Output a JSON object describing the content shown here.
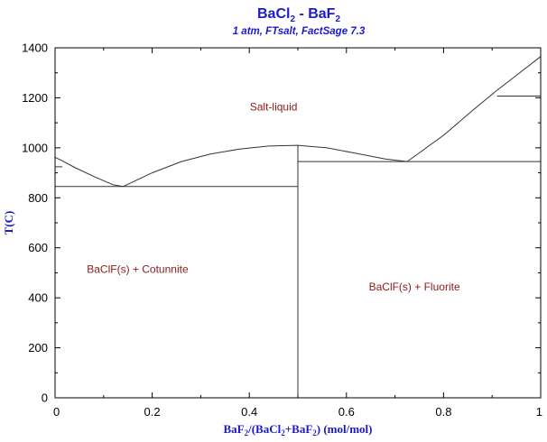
{
  "chart_data": {
    "type": "line",
    "title": "BaCl2 - BaF2",
    "title_parts": {
      "a": "BaCl",
      "a_sub": "2",
      "sep": " - BaF",
      "b_sub": "2"
    },
    "subtitle": "1 atm, FTsalt, FactSage 7.3",
    "xlabel": "BaF2/(BaCl2+BaF2) (mol/mol)",
    "xlabel_parts": {
      "p1": "BaF",
      "s1": "2",
      "p2": "/(BaCl",
      "s2": "2",
      "p3": "+BaF",
      "s3": "2",
      "p4": ") (mol/mol)"
    },
    "ylabel": "T(C)",
    "xlim": [
      0,
      1
    ],
    "ylim": [
      0,
      1400
    ],
    "xticks": [
      0,
      0.2,
      0.4,
      0.6,
      0.8,
      1
    ],
    "xtick_labels": [
      "0",
      "0.2",
      "0.4",
      "0.6",
      "0.8",
      "1"
    ],
    "yticks": [
      0,
      200,
      400,
      600,
      800,
      1000,
      1200,
      1400
    ],
    "ytick_labels": [
      "0",
      "200",
      "400",
      "600",
      "800",
      "1000",
      "1200",
      "1400"
    ],
    "grid": false,
    "regions": [
      {
        "label": "Salt-liquid",
        "x": 0.45,
        "y": 1150
      },
      {
        "label": "BaClF(s) + Cotunnite",
        "x": 0.17,
        "y": 500
      },
      {
        "label": "BaClF(s) + Fluorite",
        "x": 0.74,
        "y": 430
      }
    ],
    "series": [
      {
        "x": [
          0,
          0.015,
          0.04,
          0.08,
          0.12,
          0.14
        ],
        "y": [
          962,
          948,
          922,
          885,
          852,
          845
        ]
      },
      {
        "x": [
          0.14,
          0.2,
          0.26,
          0.32,
          0.38,
          0.44,
          0.5,
          0.56,
          0.62,
          0.68,
          0.725
        ],
        "y": [
          845,
          900,
          945,
          975,
          995,
          1007,
          1010,
          1000,
          978,
          955,
          945
        ]
      },
      {
        "x": [
          0.725,
          0.8,
          0.86,
          0.91,
          0.95,
          1.0
        ],
        "y": [
          945,
          1050,
          1150,
          1230,
          1290,
          1365
        ]
      },
      {
        "x": [
          0,
          0.015
        ],
        "y": [
          924,
          924
        ]
      },
      {
        "x": [
          0,
          0.5
        ],
        "y": [
          845,
          845
        ]
      },
      {
        "x": [
          0.5,
          0.5
        ],
        "y": [
          0,
          1010
        ]
      },
      {
        "x": [
          0.5,
          1
        ],
        "y": [
          945,
          945
        ]
      },
      {
        "x": [
          0.91,
          1
        ],
        "y": [
          1207,
          1207
        ]
      }
    ]
  }
}
